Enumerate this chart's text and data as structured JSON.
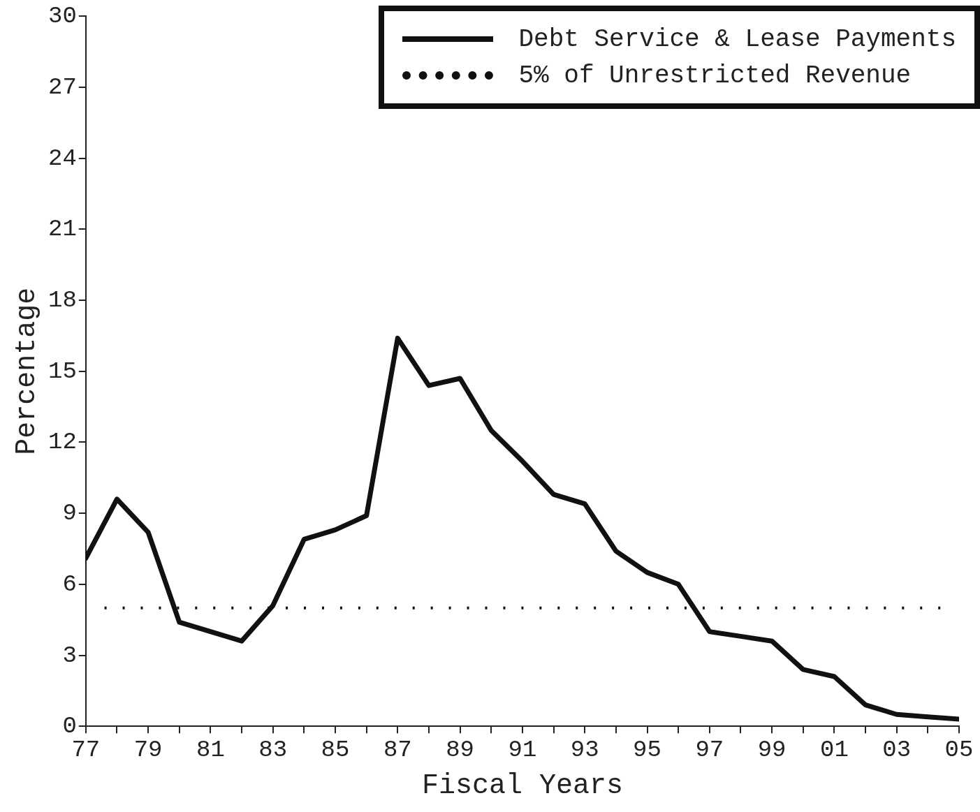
{
  "chart_data": {
    "type": "line",
    "xlabel": "Fiscal Years",
    "ylabel": "Percentage",
    "x": [
      1977,
      1978,
      1979,
      1980,
      1981,
      1982,
      1983,
      1984,
      1985,
      1986,
      1987,
      1988,
      1989,
      1990,
      1991,
      1992,
      1993,
      1994,
      1995,
      1996,
      1997,
      1998,
      1999,
      2000,
      2001,
      2002,
      2003,
      2004,
      2005
    ],
    "series": [
      {
        "name": "Debt Service & Lease Payments",
        "color": "#111111",
        "line_style": "solid",
        "values": [
          7.1,
          9.6,
          8.2,
          4.4,
          4.0,
          3.6,
          5.1,
          7.9,
          8.3,
          8.9,
          16.4,
          14.4,
          14.7,
          12.5,
          11.2,
          9.8,
          9.4,
          7.4,
          6.5,
          6.0,
          4.0,
          3.8,
          3.6,
          2.4,
          2.1,
          0.9,
          0.5,
          0.4,
          0.3
        ]
      },
      {
        "name": "5% of Unrestricted Revenue",
        "color": "#111111",
        "line_style": "dotted",
        "x": [
          1977.6,
          2004.4
        ],
        "values": [
          5,
          5
        ]
      }
    ],
    "xlim": [
      1977,
      2005
    ],
    "xticks": [
      {
        "value": 1977,
        "label": "77"
      },
      {
        "value": 1978,
        "label": null
      },
      {
        "value": 1979,
        "label": "79"
      },
      {
        "value": 1980,
        "label": null
      },
      {
        "value": 1981,
        "label": "81"
      },
      {
        "value": 1982,
        "label": null
      },
      {
        "value": 1983,
        "label": "83"
      },
      {
        "value": 1984,
        "label": null
      },
      {
        "value": 1985,
        "label": "85"
      },
      {
        "value": 1986,
        "label": null
      },
      {
        "value": 1987,
        "label": "87"
      },
      {
        "value": 1988,
        "label": null
      },
      {
        "value": 1989,
        "label": "89"
      },
      {
        "value": 1990,
        "label": null
      },
      {
        "value": 1991,
        "label": "91"
      },
      {
        "value": 1992,
        "label": null
      },
      {
        "value": 1993,
        "label": "93"
      },
      {
        "value": 1994,
        "label": null
      },
      {
        "value": 1995,
        "label": "95"
      },
      {
        "value": 1996,
        "label": null
      },
      {
        "value": 1997,
        "label": "97"
      },
      {
        "value": 1998,
        "label": null
      },
      {
        "value": 1999,
        "label": "99"
      },
      {
        "value": 2000,
        "label": null
      },
      {
        "value": 2001,
        "label": "01"
      },
      {
        "value": 2002,
        "label": null
      },
      {
        "value": 2003,
        "label": "03"
      },
      {
        "value": 2004,
        "label": null
      },
      {
        "value": 2005,
        "label": "05"
      }
    ],
    "ylim": [
      0,
      30
    ],
    "yticks": [
      0,
      3,
      6,
      9,
      12,
      15,
      18,
      21,
      24,
      27,
      30
    ],
    "grid": false,
    "legend": "top right",
    "marker": "none"
  }
}
